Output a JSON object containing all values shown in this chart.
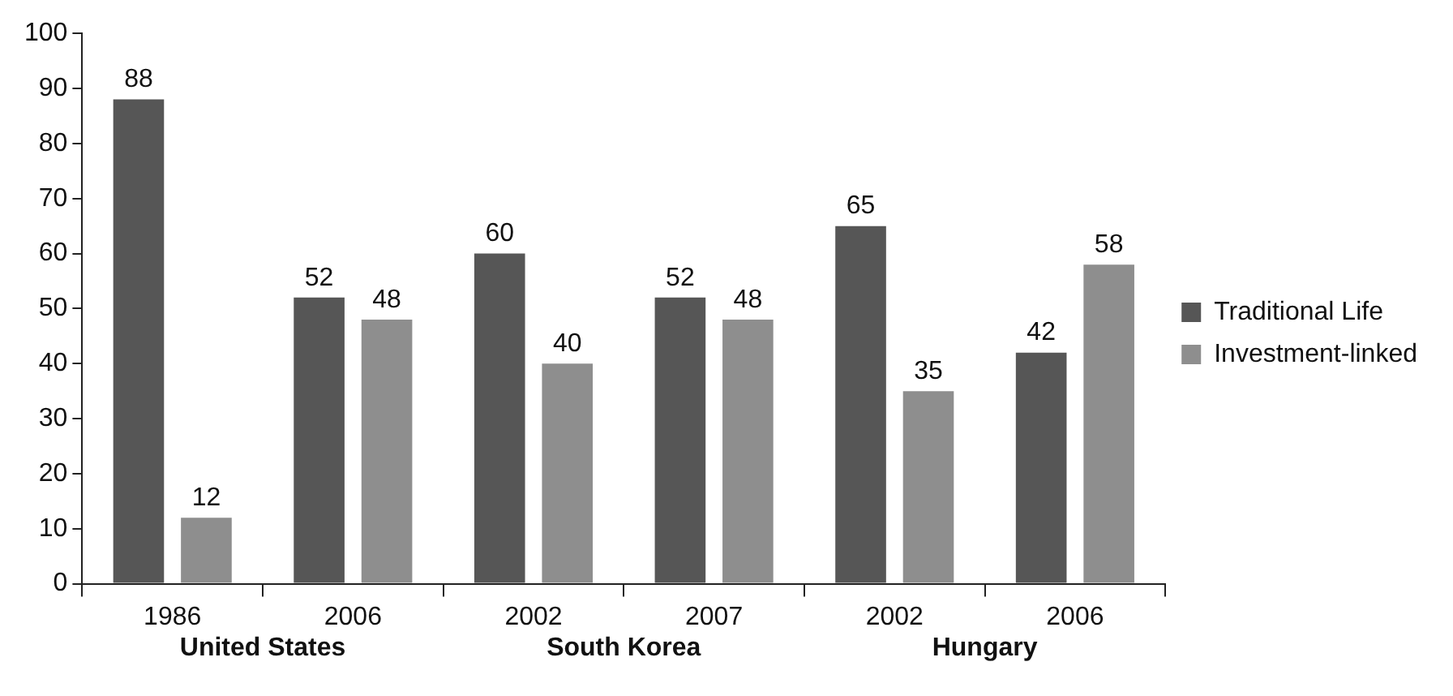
{
  "chart_data": {
    "type": "bar",
    "categories": [
      "1986",
      "2006",
      "2002",
      "2007",
      "2002",
      "2006"
    ],
    "series": [
      {
        "name": "Traditional Life",
        "color": "#565656",
        "values": [
          88,
          52,
          60,
          52,
          65,
          42
        ]
      },
      {
        "name": "Investment-linked",
        "color": "#8e8e8e",
        "values": [
          12,
          48,
          40,
          48,
          35,
          58
        ]
      }
    ],
    "ylim": [
      0,
      100
    ],
    "yticks": [
      0,
      10,
      20,
      30,
      40,
      50,
      60,
      70,
      80,
      90,
      100
    ],
    "annotations": [
      "United States",
      "South Korea",
      "Hungary"
    ],
    "data_labels": true,
    "grid": false,
    "legend": "right"
  }
}
